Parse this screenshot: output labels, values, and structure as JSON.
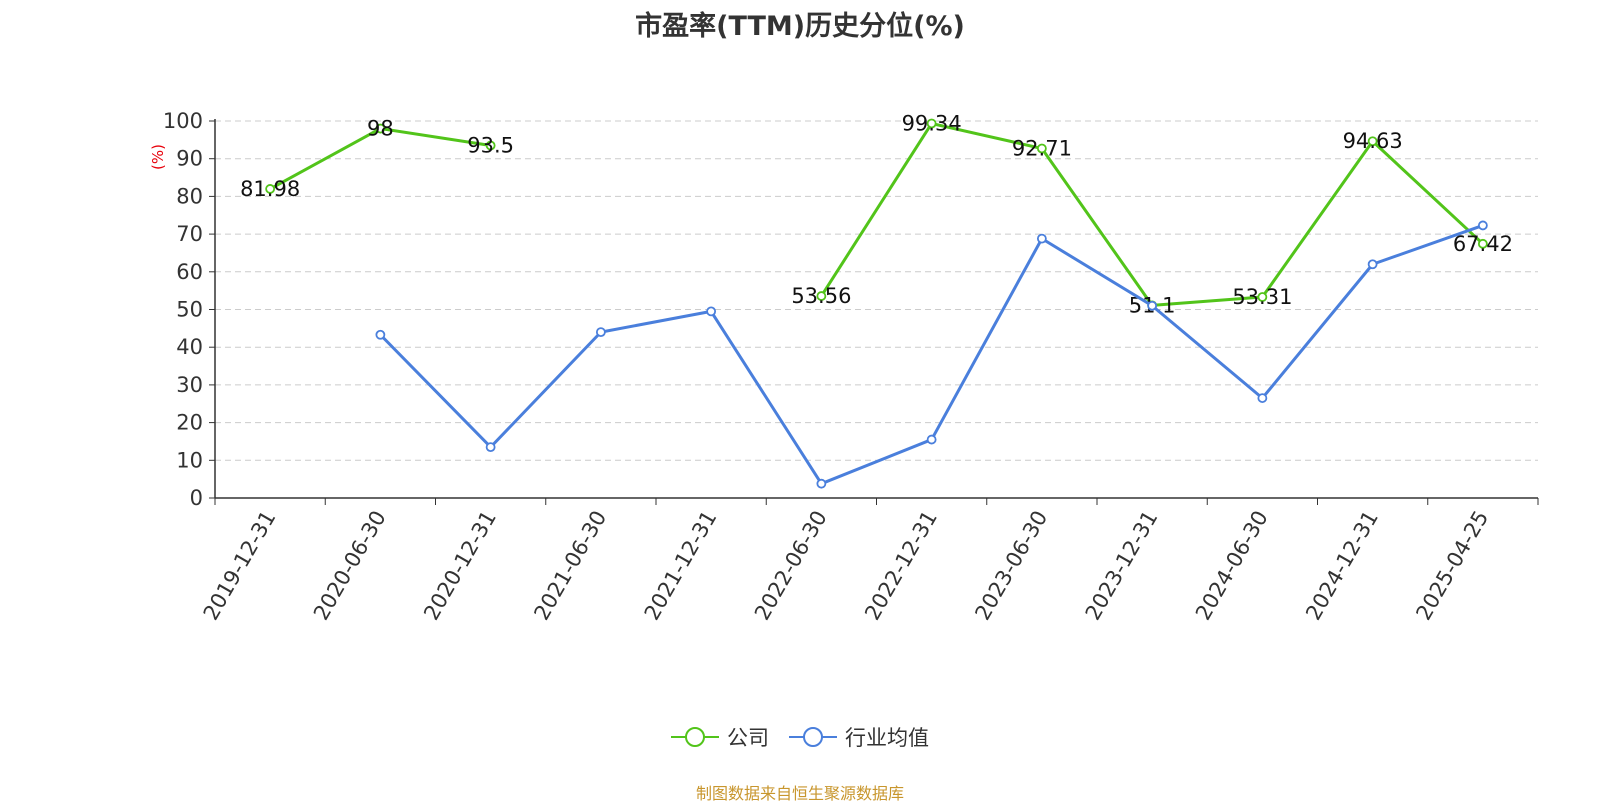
{
  "chart_data": {
    "type": "line",
    "title": "市盈率(TTM)历史分位(%)",
    "ylabel": "(%)",
    "ylim": [
      0,
      100
    ],
    "yticks": [
      0,
      10,
      20,
      30,
      40,
      50,
      60,
      70,
      80,
      90,
      100
    ],
    "categories": [
      "2019-12-31",
      "2020-06-30",
      "2020-12-31",
      "2021-06-30",
      "2021-12-31",
      "2022-06-30",
      "2022-12-31",
      "2023-06-30",
      "2023-12-31",
      "2024-06-30",
      "2024-12-31",
      "2025-04-25"
    ],
    "grid": true,
    "legend_position": "bottom",
    "series": [
      {
        "name": "公司",
        "color": "#52c41a",
        "show_labels": true,
        "values": [
          81.98,
          98,
          93.5,
          null,
          null,
          53.56,
          99.34,
          92.71,
          51.1,
          53.31,
          94.63,
          67.42
        ],
        "labels": [
          "81.98",
          "98",
          "93.5",
          null,
          null,
          "53.56",
          "99.34",
          "92.71",
          "51.1",
          "53.31",
          "94.63",
          "67.42"
        ]
      },
      {
        "name": "行业均值",
        "color": "#4a7fdc",
        "show_labels": false,
        "values": [
          null,
          43.3,
          13.5,
          44,
          49.5,
          3.8,
          15.5,
          68.8,
          51,
          26.5,
          62,
          72.3
        ]
      }
    ]
  },
  "footer": {
    "text": "制图数据来自恒生聚源数据库",
    "color": "#c8962d"
  },
  "axis_color": "#e8000b"
}
